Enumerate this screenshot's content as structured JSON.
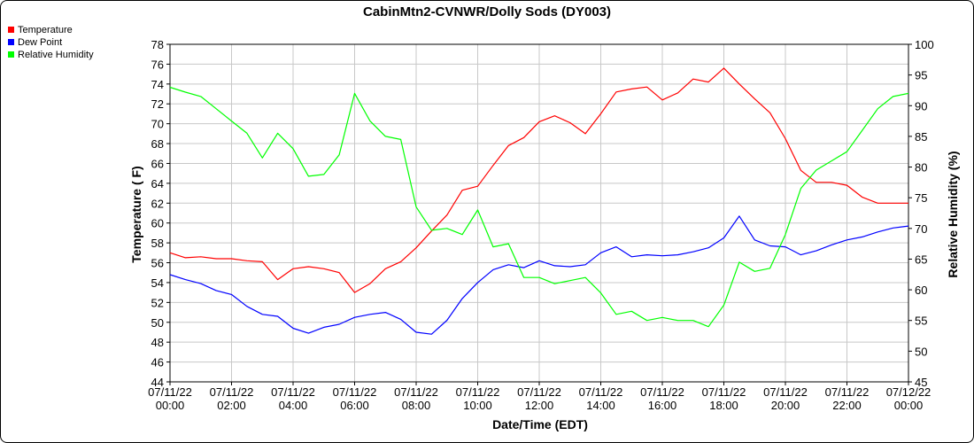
{
  "chart_data": {
    "type": "line",
    "title": "CabinMtn2-CVNWR/Dolly Sods (DY003)",
    "xlabel": "Date/Time (EDT)",
    "ylabel": "Temperature ( F)",
    "ylabel_right": "Relative Humidity (%)",
    "xlim": [
      0,
      24
    ],
    "ylim": [
      44,
      78
    ],
    "ylim_right": [
      45,
      100
    ],
    "grid": true,
    "legend_position": "top-left outside",
    "x_ticks": [
      {
        "x": 0,
        "line1": "07/11/22",
        "line2": "00:00"
      },
      {
        "x": 2,
        "line1": "07/11/22",
        "line2": "02:00"
      },
      {
        "x": 4,
        "line1": "07/11/22",
        "line2": "04:00"
      },
      {
        "x": 6,
        "line1": "07/11/22",
        "line2": "06:00"
      },
      {
        "x": 8,
        "line1": "07/11/22",
        "line2": "08:00"
      },
      {
        "x": 10,
        "line1": "07/11/22",
        "line2": "10:00"
      },
      {
        "x": 12,
        "line1": "07/11/22",
        "line2": "12:00"
      },
      {
        "x": 14,
        "line1": "07/11/22",
        "line2": "14:00"
      },
      {
        "x": 16,
        "line1": "07/11/22",
        "line2": "16:00"
      },
      {
        "x": 18,
        "line1": "07/11/22",
        "line2": "18:00"
      },
      {
        "x": 20,
        "line1": "07/11/22",
        "line2": "20:00"
      },
      {
        "x": 22,
        "line1": "07/11/22",
        "line2": "22:00"
      },
      {
        "x": 24,
        "line1": "07/12/22",
        "line2": "00:00"
      }
    ],
    "y_ticks_left": [
      44,
      46,
      48,
      50,
      52,
      54,
      56,
      58,
      60,
      62,
      64,
      66,
      68,
      70,
      72,
      74,
      76,
      78
    ],
    "y_ticks_right": [
      45,
      50,
      55,
      60,
      65,
      70,
      75,
      80,
      85,
      90,
      95,
      100
    ],
    "series": [
      {
        "name": "Temperature",
        "color": "#ff0000",
        "axis": "left",
        "x": [
          0,
          0.5,
          1,
          1.5,
          2,
          2.5,
          3,
          3.5,
          4,
          4.5,
          5,
          5.5,
          6,
          6.5,
          7,
          7.5,
          8,
          8.5,
          9,
          9.5,
          10,
          10.5,
          11,
          11.5,
          12,
          12.5,
          13,
          13.5,
          14,
          14.5,
          15,
          15.5,
          16,
          16.5,
          17,
          17.5,
          18,
          18.5,
          19,
          19.5,
          20,
          20.5,
          21,
          21.5,
          22,
          22.5,
          23,
          23.5,
          24
        ],
        "y": [
          57.0,
          56.5,
          56.6,
          56.4,
          56.4,
          56.2,
          56.1,
          54.3,
          55.4,
          55.6,
          55.4,
          55.0,
          53.0,
          53.9,
          55.4,
          56.1,
          57.5,
          59.2,
          60.8,
          63.3,
          63.7,
          65.8,
          67.8,
          68.6,
          70.2,
          70.8,
          70.1,
          69.0,
          71.0,
          73.2,
          73.5,
          73.7,
          72.4,
          73.1,
          74.5,
          74.2,
          75.6,
          74.0,
          72.5,
          71.1,
          68.5,
          65.3,
          64.1,
          64.1,
          63.8,
          62.6,
          62.0,
          62.0,
          62.0
        ]
      },
      {
        "name": "Dew Point",
        "color": "#0000ff",
        "axis": "left",
        "x": [
          0,
          0.5,
          1,
          1.5,
          2,
          2.5,
          3,
          3.5,
          4,
          4.5,
          5,
          5.5,
          6,
          6.5,
          7,
          7.5,
          8,
          8.5,
          9,
          9.5,
          10,
          10.5,
          11,
          11.5,
          12,
          12.5,
          13,
          13.5,
          14,
          14.5,
          15,
          15.5,
          16,
          16.5,
          17,
          17.5,
          18,
          18.5,
          19,
          19.5,
          20,
          20.5,
          21,
          21.5,
          22,
          22.5,
          23,
          23.5,
          24
        ],
        "y": [
          54.8,
          54.3,
          53.9,
          53.2,
          52.8,
          51.6,
          50.8,
          50.6,
          49.4,
          48.9,
          49.5,
          49.8,
          50.5,
          50.8,
          51.0,
          50.3,
          49.0,
          48.8,
          50.2,
          52.4,
          54.0,
          55.3,
          55.8,
          55.5,
          56.2,
          55.7,
          55.6,
          55.8,
          57.0,
          57.6,
          56.6,
          56.8,
          56.7,
          56.8,
          57.1,
          57.5,
          58.5,
          60.7,
          58.3,
          57.7,
          57.6,
          56.8,
          57.2,
          57.8,
          58.3,
          58.6,
          59.1,
          59.5,
          59.7
        ]
      },
      {
        "name": "Relative Humidity",
        "color": "#00ff00",
        "axis": "right",
        "x": [
          0,
          0.5,
          1,
          1.5,
          2,
          2.5,
          3,
          3.5,
          4,
          4.5,
          5,
          5.5,
          6,
          6.5,
          7,
          7.5,
          8,
          8.5,
          9,
          9.5,
          10,
          10.5,
          11,
          11.5,
          12,
          12.5,
          13,
          13.5,
          14,
          14.5,
          15,
          15.5,
          16,
          16.5,
          17,
          17.5,
          18,
          18.5,
          19,
          19.5,
          20,
          20.5,
          21,
          21.5,
          22,
          22.5,
          23,
          23.5,
          24
        ],
        "y": [
          93,
          92.2,
          91.5,
          89.5,
          87.5,
          85.5,
          81.5,
          85.5,
          83,
          78.5,
          78.8,
          82,
          92,
          87.5,
          85,
          84.5,
          73.5,
          69.7,
          70,
          69,
          73,
          67,
          67.5,
          62,
          62,
          61,
          61.5,
          62,
          59.5,
          56,
          56.5,
          55,
          55.5,
          55,
          55,
          54,
          57.5,
          64.5,
          63,
          63.5,
          69,
          76.5,
          79.5,
          81,
          82.5,
          86,
          89.5,
          91.5,
          92
        ]
      }
    ]
  }
}
